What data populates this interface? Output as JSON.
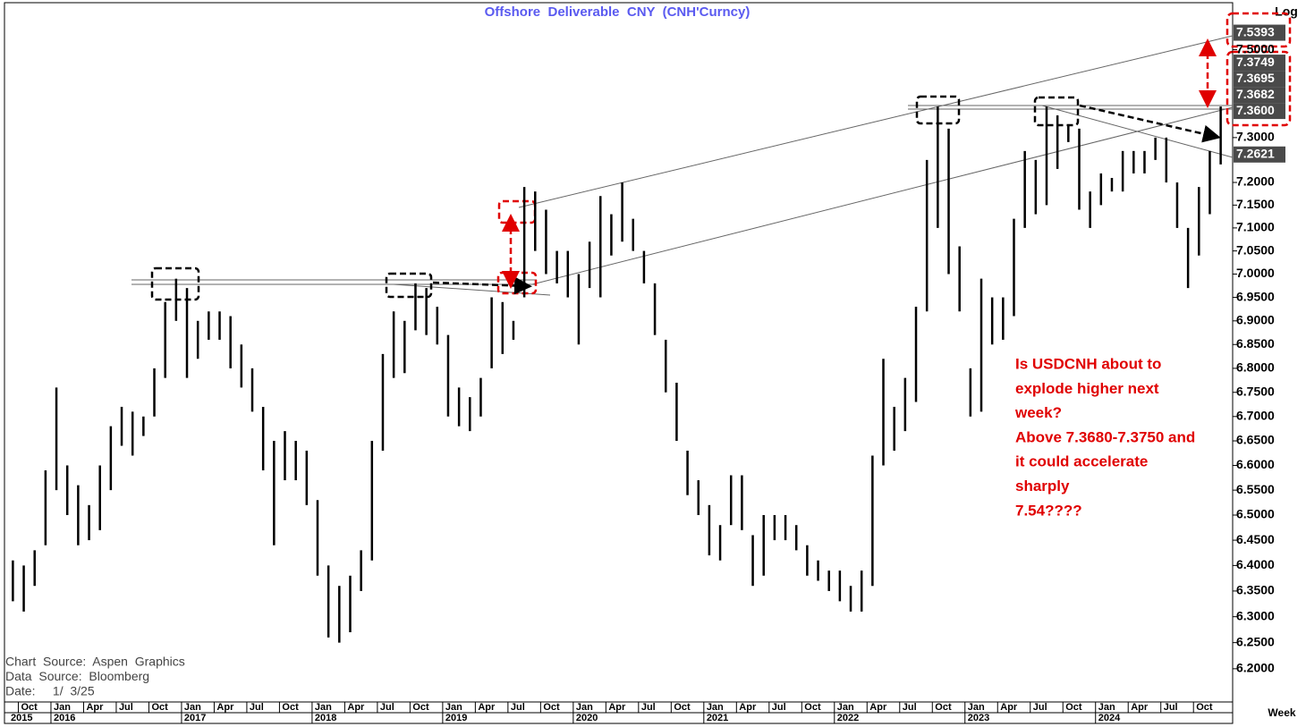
{
  "chart_data": {
    "type": "range-bar",
    "title": "Offshore  Deliverable  CNY  (CNH'Curncy)",
    "log_scale": true,
    "scale_label": "Log",
    "period_label": "Week",
    "color": "#000000",
    "x": [
      "2015-09",
      "2015-10",
      "2015-11",
      "2015-12",
      "2016-01",
      "2016-02",
      "2016-03",
      "2016-04",
      "2016-05",
      "2016-06",
      "2016-07",
      "2016-08",
      "2016-09",
      "2016-10",
      "2016-11",
      "2016-12",
      "2017-01",
      "2017-02",
      "2017-03",
      "2017-04",
      "2017-05",
      "2017-06",
      "2017-07",
      "2017-08",
      "2017-09",
      "2017-10",
      "2017-11",
      "2017-12",
      "2018-01",
      "2018-02",
      "2018-03",
      "2018-04",
      "2018-05",
      "2018-06",
      "2018-07",
      "2018-08",
      "2018-09",
      "2018-10",
      "2018-11",
      "2018-12",
      "2019-01",
      "2019-02",
      "2019-03",
      "2019-04",
      "2019-05",
      "2019-06",
      "2019-07",
      "2019-08",
      "2019-09",
      "2019-10",
      "2019-11",
      "2019-12",
      "2020-01",
      "2020-02",
      "2020-03",
      "2020-04",
      "2020-05",
      "2020-06",
      "2020-07",
      "2020-08",
      "2020-09",
      "2020-10",
      "2020-11",
      "2020-12",
      "2021-01",
      "2021-02",
      "2021-03",
      "2021-04",
      "2021-05",
      "2021-06",
      "2021-07",
      "2021-08",
      "2021-09",
      "2021-10",
      "2021-11",
      "2021-12",
      "2022-01",
      "2022-02",
      "2022-03",
      "2022-04",
      "2022-05",
      "2022-06",
      "2022-07",
      "2022-08",
      "2022-09",
      "2022-10",
      "2022-11",
      "2022-12",
      "2023-01",
      "2023-02",
      "2023-03",
      "2023-04",
      "2023-05",
      "2023-06",
      "2023-07",
      "2023-08",
      "2023-09",
      "2023-10",
      "2023-11",
      "2023-12",
      "2024-01",
      "2024-02",
      "2024-03",
      "2024-04",
      "2024-05",
      "2024-06",
      "2024-07",
      "2024-08",
      "2024-09",
      "2024-10",
      "2024-11",
      "2024-12"
    ],
    "high": [
      6.41,
      6.4,
      6.43,
      6.59,
      6.76,
      6.6,
      6.56,
      6.52,
      6.6,
      6.68,
      6.72,
      6.71,
      6.7,
      6.8,
      6.94,
      6.99,
      6.97,
      6.9,
      6.92,
      6.92,
      6.91,
      6.85,
      6.8,
      6.72,
      6.65,
      6.67,
      6.65,
      6.63,
      6.53,
      6.4,
      6.36,
      6.38,
      6.43,
      6.65,
      6.83,
      6.92,
      6.9,
      6.98,
      6.97,
      6.93,
      6.87,
      6.76,
      6.74,
      6.78,
      6.95,
      6.94,
      6.9,
      7.19,
      7.18,
      7.14,
      7.05,
      7.05,
      7.0,
      7.07,
      7.17,
      7.13,
      7.2,
      7.12,
      7.05,
      6.98,
      6.86,
      6.77,
      6.63,
      6.57,
      6.52,
      6.48,
      6.58,
      6.58,
      6.46,
      6.5,
      6.5,
      6.5,
      6.48,
      6.44,
      6.41,
      6.39,
      6.39,
      6.36,
      6.39,
      6.62,
      6.82,
      6.72,
      6.78,
      6.93,
      7.25,
      7.37,
      7.32,
      7.06,
      6.8,
      6.99,
      6.95,
      6.95,
      7.12,
      7.27,
      7.25,
      7.37,
      7.35,
      7.33,
      7.32,
      7.18,
      7.22,
      7.21,
      7.27,
      7.27,
      7.27,
      7.3,
      7.3,
      7.2,
      7.1,
      7.19,
      7.27,
      7.37
    ],
    "low": [
      6.33,
      6.31,
      6.36,
      6.44,
      6.55,
      6.5,
      6.44,
      6.45,
      6.47,
      6.55,
      6.64,
      6.62,
      6.66,
      6.7,
      6.78,
      6.9,
      6.78,
      6.82,
      6.86,
      6.86,
      6.8,
      6.76,
      6.71,
      6.59,
      6.44,
      6.57,
      6.57,
      6.52,
      6.38,
      6.26,
      6.25,
      6.27,
      6.35,
      6.41,
      6.63,
      6.78,
      6.79,
      6.88,
      6.87,
      6.85,
      6.7,
      6.68,
      6.67,
      6.7,
      6.8,
      6.83,
      6.86,
      6.95,
      7.05,
      7.0,
      6.98,
      6.95,
      6.85,
      6.97,
      6.95,
      7.04,
      7.07,
      7.05,
      6.98,
      6.87,
      6.75,
      6.65,
      6.54,
      6.5,
      6.42,
      6.41,
      6.48,
      6.47,
      6.36,
      6.38,
      6.45,
      6.45,
      6.43,
      6.38,
      6.37,
      6.35,
      6.33,
      6.31,
      6.31,
      6.36,
      6.6,
      6.63,
      6.67,
      6.73,
      6.92,
      7.1,
      7.0,
      6.92,
      6.7,
      6.71,
      6.85,
      6.86,
      6.91,
      7.1,
      7.13,
      7.15,
      7.23,
      7.29,
      7.14,
      7.1,
      7.15,
      7.18,
      7.18,
      7.22,
      7.22,
      7.25,
      7.2,
      7.1,
      6.97,
      7.04,
      7.13,
      7.24
    ],
    "xlim": [
      2015.644,
      2025.05
    ],
    "ylim": [
      6.137,
      7.605
    ],
    "yticks": [
      {
        "value": 6.2,
        "label": "6.2000"
      },
      {
        "value": 6.25,
        "label": "6.2500"
      },
      {
        "value": 6.3,
        "label": "6.3000"
      },
      {
        "value": 6.35,
        "label": "6.3500"
      },
      {
        "value": 6.4,
        "label": "6.4000"
      },
      {
        "value": 6.45,
        "label": "6.4500"
      },
      {
        "value": 6.5,
        "label": "6.5000"
      },
      {
        "value": 6.55,
        "label": "6.5500"
      },
      {
        "value": 6.6,
        "label": "6.6000"
      },
      {
        "value": 6.65,
        "label": "6.6500"
      },
      {
        "value": 6.7,
        "label": "6.7000"
      },
      {
        "value": 6.75,
        "label": "6.7500"
      },
      {
        "value": 6.8,
        "label": "6.8000"
      },
      {
        "value": 6.85,
        "label": "6.8500"
      },
      {
        "value": 6.9,
        "label": "6.9000"
      },
      {
        "value": 6.95,
        "label": "6.9500"
      },
      {
        "value": 7.0,
        "label": "7.0000"
      },
      {
        "value": 7.05,
        "label": "7.0500"
      },
      {
        "value": 7.1,
        "label": "7.1000"
      },
      {
        "value": 7.15,
        "label": "7.1500"
      },
      {
        "value": 7.2,
        "label": "7.2000"
      },
      {
        "value": 7.3,
        "label": "7.3000"
      },
      {
        "value": 7.5,
        "label": "7.5000"
      }
    ],
    "xticks": [
      {
        "value": 2015.75,
        "label": "Oct"
      },
      {
        "value": 2016.0,
        "label": "Jan"
      },
      {
        "value": 2016.25,
        "label": "Apr"
      },
      {
        "value": 2016.5,
        "label": "Jul"
      },
      {
        "value": 2016.75,
        "label": "Oct"
      },
      {
        "value": 2017.0,
        "label": "Jan"
      },
      {
        "value": 2017.25,
        "label": "Apr"
      },
      {
        "value": 2017.5,
        "label": "Jul"
      },
      {
        "value": 2017.75,
        "label": "Oct"
      },
      {
        "value": 2018.0,
        "label": "Jan"
      },
      {
        "value": 2018.25,
        "label": "Apr"
      },
      {
        "value": 2018.5,
        "label": "Jul"
      },
      {
        "value": 2018.75,
        "label": "Oct"
      },
      {
        "value": 2019.0,
        "label": "Jan"
      },
      {
        "value": 2019.25,
        "label": "Apr"
      },
      {
        "value": 2019.5,
        "label": "Jul"
      },
      {
        "value": 2019.75,
        "label": "Oct"
      },
      {
        "value": 2020.0,
        "label": "Jan"
      },
      {
        "value": 2020.25,
        "label": "Apr"
      },
      {
        "value": 2020.5,
        "label": "Jul"
      },
      {
        "value": 2020.75,
        "label": "Oct"
      },
      {
        "value": 2021.0,
        "label": "Jan"
      },
      {
        "value": 2021.25,
        "label": "Apr"
      },
      {
        "value": 2021.5,
        "label": "Jul"
      },
      {
        "value": 2021.75,
        "label": "Oct"
      },
      {
        "value": 2022.0,
        "label": "Jan"
      },
      {
        "value": 2022.25,
        "label": "Apr"
      },
      {
        "value": 2022.5,
        "label": "Jul"
      },
      {
        "value": 2022.75,
        "label": "Oct"
      },
      {
        "value": 2023.0,
        "label": "Jan"
      },
      {
        "value": 2023.25,
        "label": "Apr"
      },
      {
        "value": 2023.5,
        "label": "Jul"
      },
      {
        "value": 2023.75,
        "label": "Oct"
      },
      {
        "value": 2024.0,
        "label": "Jan"
      },
      {
        "value": 2024.25,
        "label": "Apr"
      },
      {
        "value": 2024.5,
        "label": "Jul"
      },
      {
        "value": 2024.75,
        "label": "Oct"
      }
    ],
    "year_labels": [
      2015,
      2016,
      2017,
      2018,
      2019,
      2020,
      2021,
      2022,
      2023,
      2024
    ],
    "price_labels": [
      {
        "value": 7.5393,
        "label": "7.5393"
      },
      {
        "value": 7.3749,
        "label": "7.3749"
      },
      {
        "value": 7.3695,
        "label": "7.3695"
      },
      {
        "value": 7.3682,
        "label": "7.3682"
      },
      {
        "value": 7.36,
        "label": "7.3600"
      },
      {
        "value": 7.2621,
        "label": "7.2621"
      }
    ],
    "annotation": [
      "Is USDCNH about to",
      "explode higher next",
      "week?",
      "Above 7.3680-7.3750 and",
      "it could accelerate",
      "sharply",
      "7.54????"
    ],
    "notes": [
      "Chart  Source:  Aspen  Graphics",
      "Data  Source:  Bloomberg",
      "Date:     1/  3/25"
    ]
  }
}
